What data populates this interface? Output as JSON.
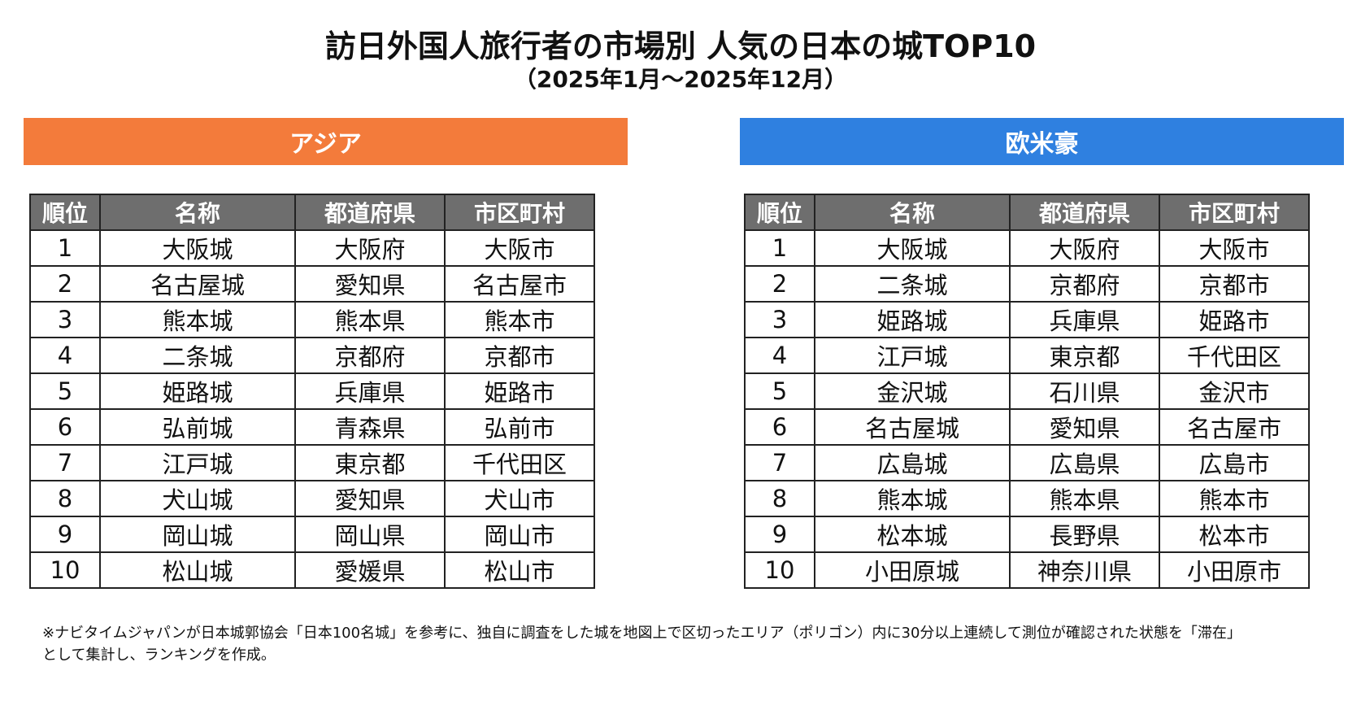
{
  "title": "訪日外国人旅行者の市場別 人気の日本の城TOP10",
  "subtitle": "（2025年1月～2025年12月）",
  "colors": {
    "asia_header": "#f37b3b",
    "west_header": "#2f80e0",
    "table_header": "#6e6e6e"
  },
  "columns": [
    "順位",
    "名称",
    "都道府県",
    "市区町村"
  ],
  "asia": {
    "label": "アジア",
    "rows": [
      {
        "rank": "1",
        "name": "大阪城",
        "pref": "大阪府",
        "city": "大阪市"
      },
      {
        "rank": "2",
        "name": "名古屋城",
        "pref": "愛知県",
        "city": "名古屋市"
      },
      {
        "rank": "3",
        "name": "熊本城",
        "pref": "熊本県",
        "city": "熊本市"
      },
      {
        "rank": "4",
        "name": "二条城",
        "pref": "京都府",
        "city": "京都市"
      },
      {
        "rank": "5",
        "name": "姫路城",
        "pref": "兵庫県",
        "city": "姫路市"
      },
      {
        "rank": "6",
        "name": "弘前城",
        "pref": "青森県",
        "city": "弘前市"
      },
      {
        "rank": "7",
        "name": "江戸城",
        "pref": "東京都",
        "city": "千代田区"
      },
      {
        "rank": "8",
        "name": "犬山城",
        "pref": "愛知県",
        "city": "犬山市"
      },
      {
        "rank": "9",
        "name": "岡山城",
        "pref": "岡山県",
        "city": "岡山市"
      },
      {
        "rank": "10",
        "name": "松山城",
        "pref": "愛媛県",
        "city": "松山市"
      }
    ]
  },
  "west": {
    "label": "欧米豪",
    "rows": [
      {
        "rank": "1",
        "name": "大阪城",
        "pref": "大阪府",
        "city": "大阪市"
      },
      {
        "rank": "2",
        "name": "二条城",
        "pref": "京都府",
        "city": "京都市"
      },
      {
        "rank": "3",
        "name": "姫路城",
        "pref": "兵庫県",
        "city": "姫路市"
      },
      {
        "rank": "4",
        "name": "江戸城",
        "pref": "東京都",
        "city": "千代田区"
      },
      {
        "rank": "5",
        "name": "金沢城",
        "pref": "石川県",
        "city": "金沢市"
      },
      {
        "rank": "6",
        "name": "名古屋城",
        "pref": "愛知県",
        "city": "名古屋市"
      },
      {
        "rank": "7",
        "name": "広島城",
        "pref": "広島県",
        "city": "広島市"
      },
      {
        "rank": "8",
        "name": "熊本城",
        "pref": "熊本県",
        "city": "熊本市"
      },
      {
        "rank": "9",
        "name": "松本城",
        "pref": "長野県",
        "city": "松本市"
      },
      {
        "rank": "10",
        "name": "小田原城",
        "pref": "神奈川県",
        "city": "小田原市"
      }
    ]
  },
  "note_line1": "※ナビタイムジャパンが日本城郭協会「日本100名城」を参考に、独自に調査をした城を地図上で区切ったエリア（ポリゴン）内に30分以上連続して測位が確認された状態を「滞在」",
  "note_line2": "として集計し、ランキングを作成。"
}
